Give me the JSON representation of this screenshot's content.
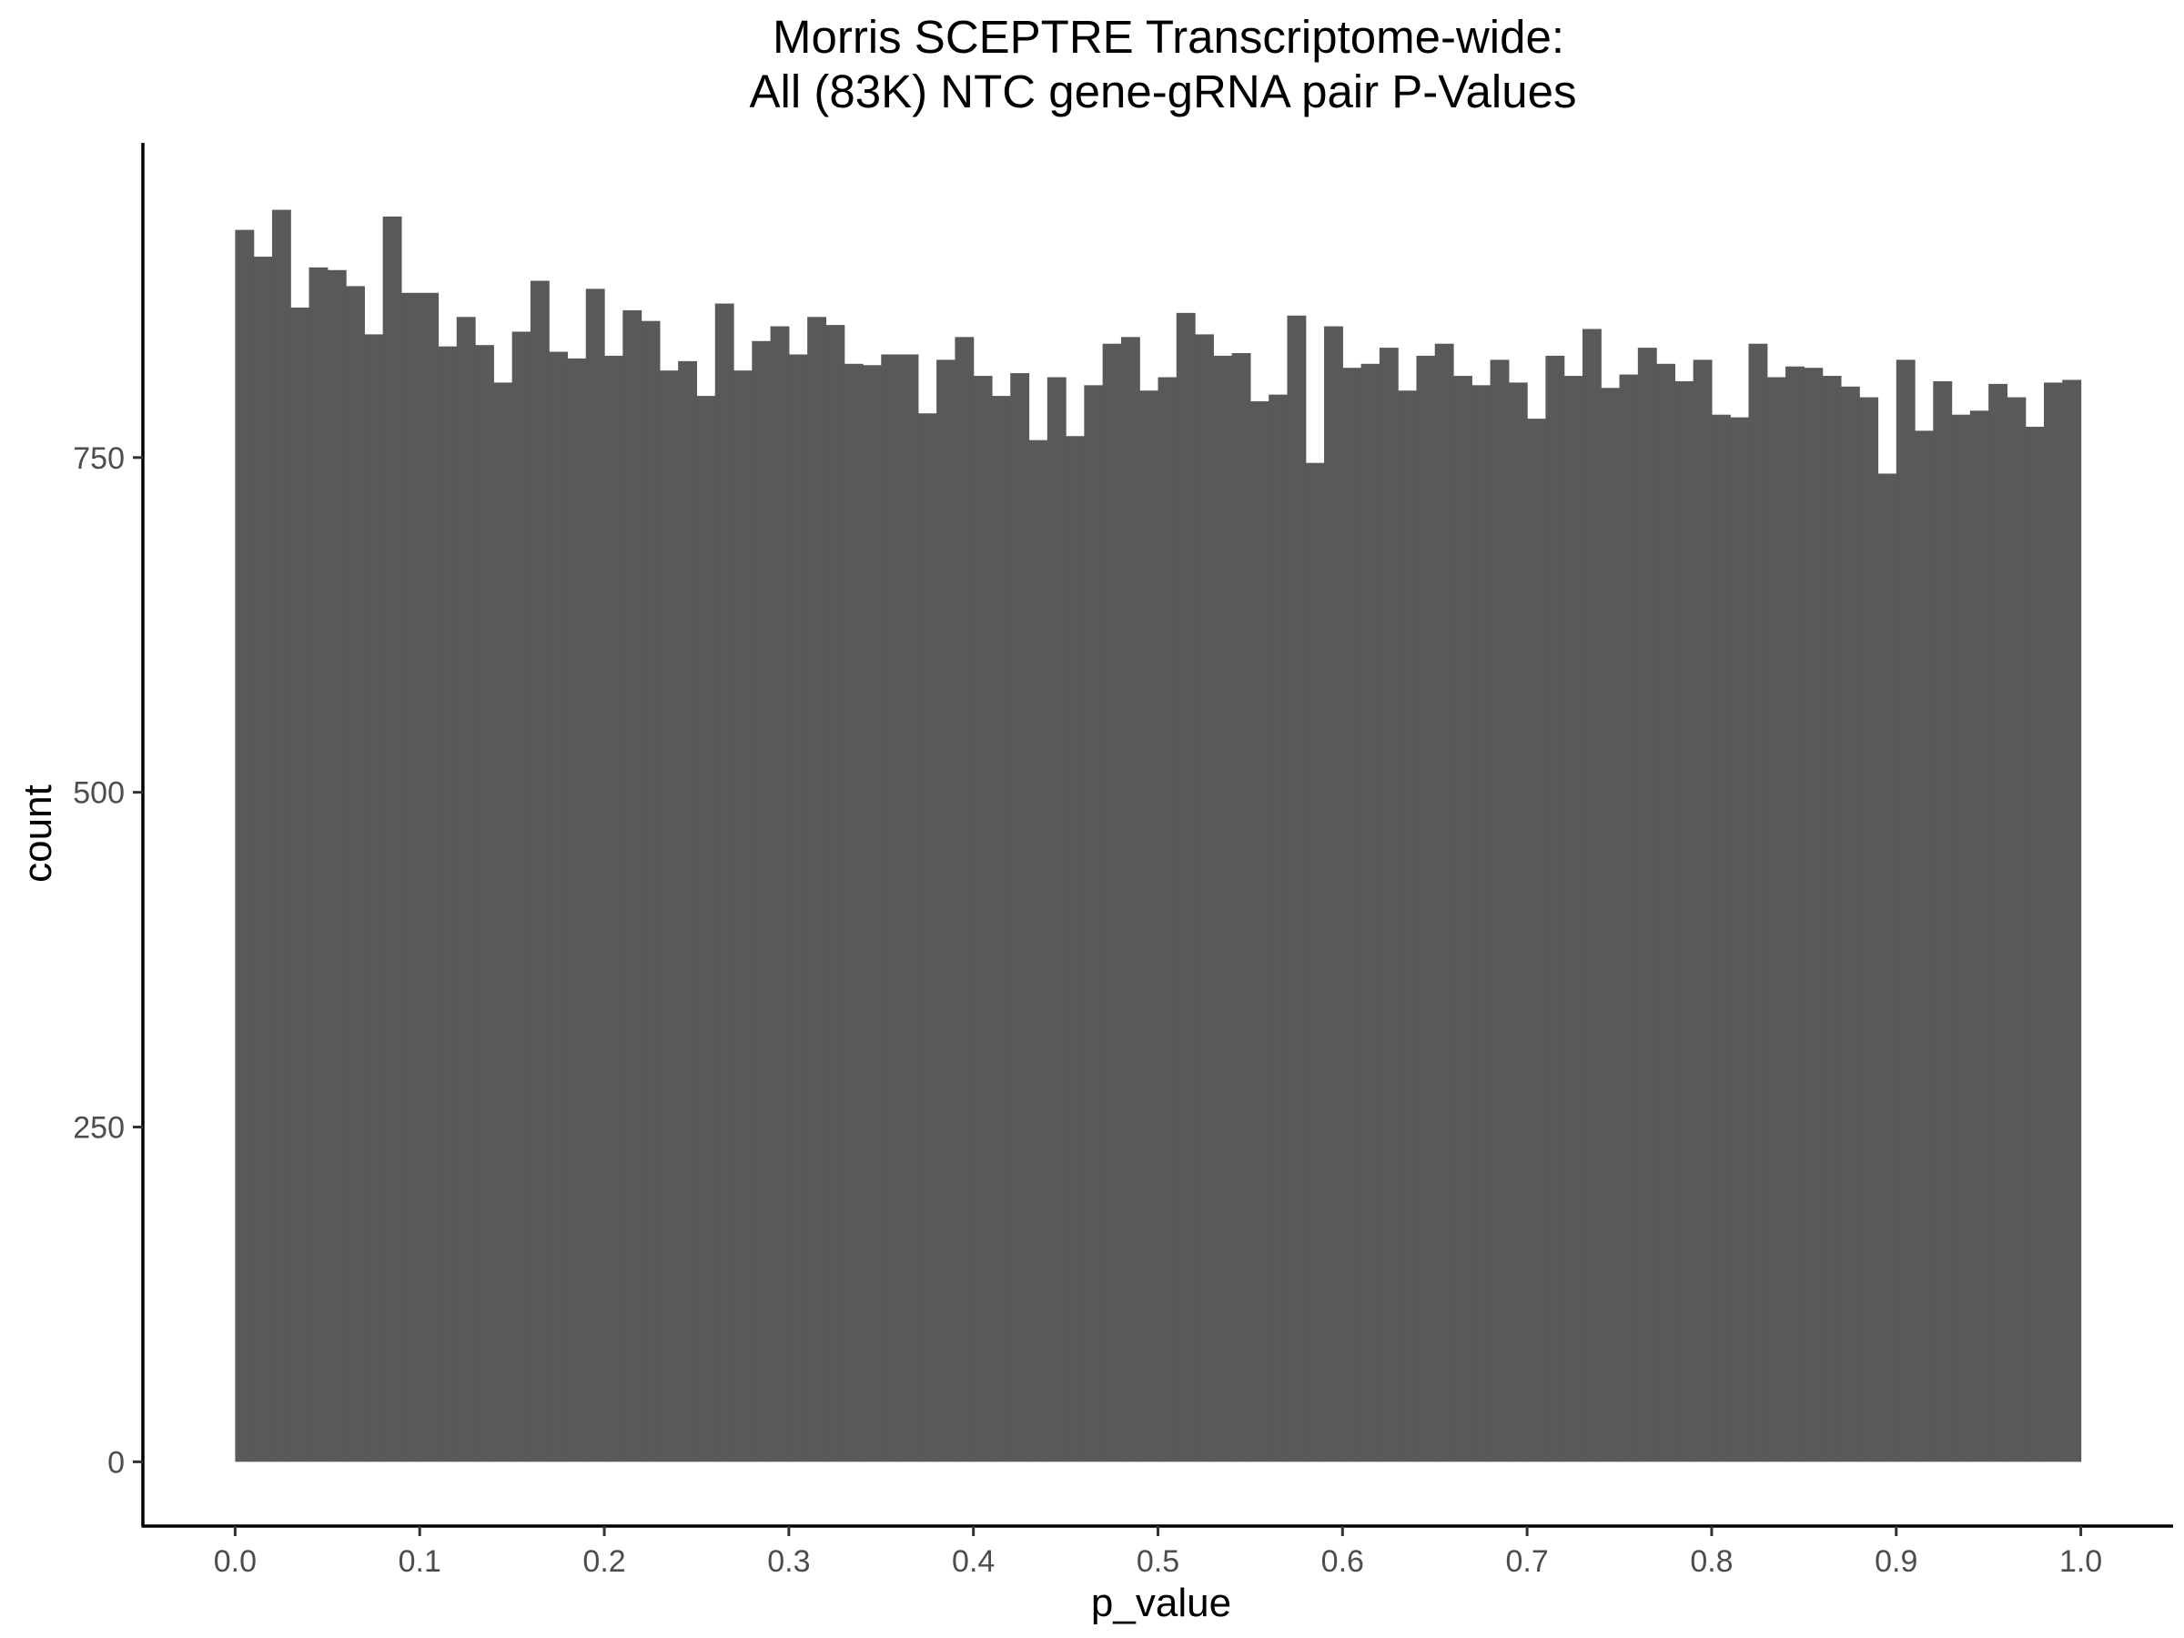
{
  "chart_data": {
    "type": "bar",
    "title_lines": [
      "Morris SCEPTRE Transcriptome-wide:",
      "All (83K) NTC gene-gRNA pair P-Values"
    ],
    "xlabel": "p_value",
    "ylabel": "count",
    "x_ticks": [
      "0.0",
      "0.1",
      "0.2",
      "0.3",
      "0.4",
      "0.5",
      "0.6",
      "0.7",
      "0.8",
      "0.9",
      "1.0"
    ],
    "y_ticks": [
      "0",
      "250",
      "500",
      "750"
    ],
    "xlim": [
      -0.05,
      1.05
    ],
    "ylim": [
      -48,
      985
    ],
    "bin_width": 0.01,
    "bin_start": 0.0,
    "bar_color": "#595959",
    "grid": false,
    "values": [
      920,
      900,
      935,
      862,
      892,
      890,
      878,
      842,
      930,
      873,
      873,
      833,
      855,
      834,
      806,
      844,
      882,
      829,
      824,
      876,
      826,
      860,
      852,
      815,
      822,
      796,
      865,
      815,
      837,
      848,
      827,
      855,
      849,
      820,
      819,
      827,
      827,
      783,
      823,
      840,
      811,
      796,
      813,
      763,
      810,
      766,
      804,
      835,
      840,
      800,
      810,
      858,
      842,
      826,
      828,
      792,
      797,
      856,
      746,
      848,
      817,
      820,
      832,
      800,
      826,
      835,
      811,
      804,
      823,
      806,
      779,
      826,
      811,
      846,
      802,
      812,
      832,
      820,
      807,
      823,
      782,
      780,
      835,
      810,
      818,
      817,
      811,
      803,
      795,
      738,
      823,
      770,
      807,
      782,
      785,
      805,
      795,
      773,
      806,
      808
    ]
  }
}
